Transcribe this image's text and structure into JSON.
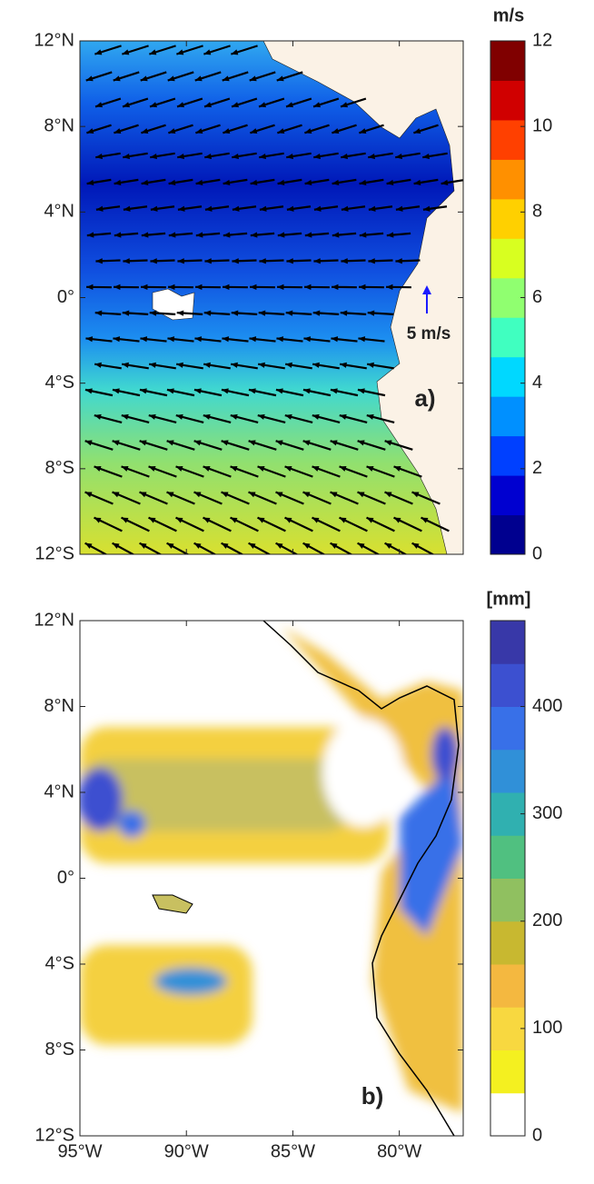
{
  "chart_data": [
    {
      "type": "map",
      "panel_label": "a)",
      "annotation": "5 m/s",
      "xlim": [
        -95,
        -77
      ],
      "ylim": [
        -12,
        12
      ],
      "xticks": [
        -95,
        -90,
        -85,
        -80
      ],
      "yticks": [
        {
          "value": 12,
          "label": "12°N"
        },
        {
          "value": 8,
          "label": "8°N"
        },
        {
          "value": 4,
          "label": "4°N"
        },
        {
          "value": 0,
          "label": "0°"
        },
        {
          "value": -4,
          "label": "4°S"
        },
        {
          "value": -8,
          "label": "8°S"
        },
        {
          "value": -12,
          "label": "12°S"
        }
      ],
      "colorbar": {
        "title": "m/s",
        "lim": [
          0,
          12
        ],
        "ticks": [
          0,
          2,
          4,
          6,
          8,
          10,
          12
        ],
        "colors": [
          "#00008f",
          "#0000d0",
          "#0040ff",
          "#0090ff",
          "#00d8ff",
          "#40ffc0",
          "#90ff70",
          "#d8ff20",
          "#ffd000",
          "#ff9000",
          "#ff4000",
          "#d00000",
          "#800000"
        ]
      }
    },
    {
      "type": "map",
      "panel_label": "b)",
      "xlim": [
        -95,
        -77
      ],
      "ylim": [
        -12,
        12
      ],
      "xticks": [
        {
          "value": -95,
          "label": "95°W"
        },
        {
          "value": -90,
          "label": "90°W"
        },
        {
          "value": -85,
          "label": "85°W"
        },
        {
          "value": -80,
          "label": "80°W"
        }
      ],
      "yticks": [
        {
          "value": 12,
          "label": "12°N"
        },
        {
          "value": 8,
          "label": "8°N"
        },
        {
          "value": 4,
          "label": "4°N"
        },
        {
          "value": 0,
          "label": "0°"
        },
        {
          "value": -4,
          "label": "4°S"
        },
        {
          "value": -8,
          "label": "8°S"
        },
        {
          "value": -12,
          "label": "12°S"
        }
      ],
      "colorbar": {
        "title": "[mm]",
        "lim": [
          0,
          480
        ],
        "ticks": [
          0,
          100,
          200,
          300,
          400
        ],
        "colors": [
          "#ffffff",
          "#f4f020",
          "#f8d840",
          "#f4b840",
          "#c8b830",
          "#90c060",
          "#50c080",
          "#30b0b0",
          "#3090d8",
          "#3870e8",
          "#3c50d0",
          "#3838a8"
        ]
      }
    }
  ]
}
